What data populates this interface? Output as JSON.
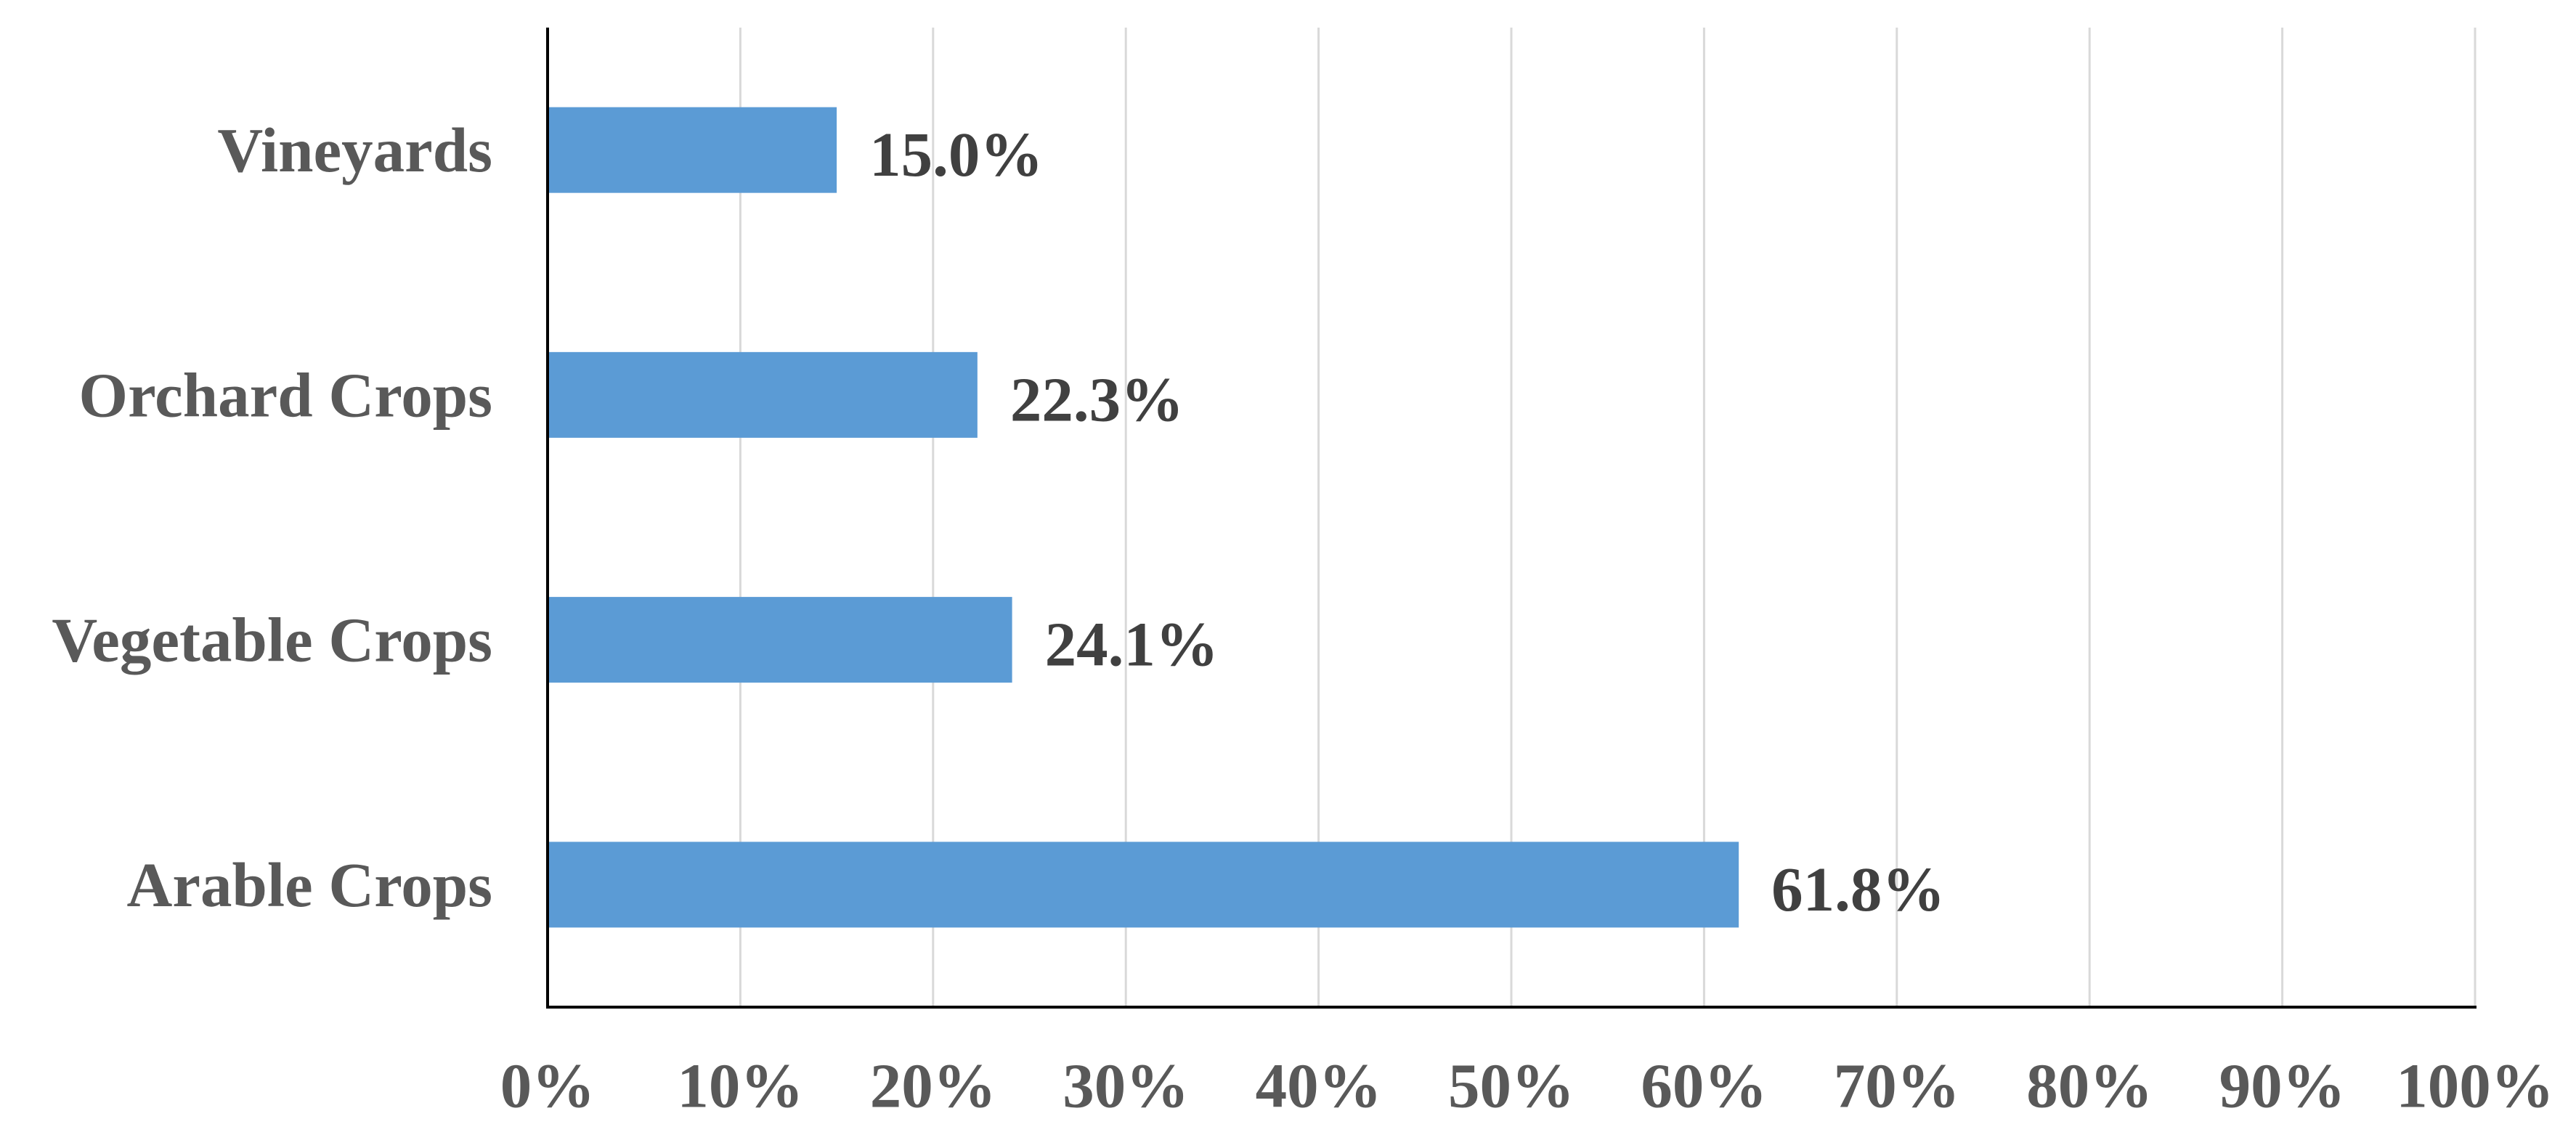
{
  "chart_data": {
    "type": "bar",
    "orientation": "horizontal",
    "categories": [
      "Arable Crops",
      "Vegetable Crops",
      "Orchard Crops",
      "Vineyards"
    ],
    "values": [
      61.8,
      24.1,
      22.3,
      15.0
    ],
    "data_labels": [
      "61.8%",
      "24.1%",
      "22.3%",
      "15.0%"
    ],
    "x_ticks": [
      0,
      10,
      20,
      30,
      40,
      50,
      60,
      70,
      80,
      90,
      100
    ],
    "x_tick_labels": [
      "0%",
      "10%",
      "20%",
      "30%",
      "40%",
      "50%",
      "60%",
      "70%",
      "80%",
      "90%",
      "100%"
    ],
    "xlim": [
      0,
      100
    ],
    "grid": "vertical",
    "legend": "none",
    "title": "",
    "xlabel": "",
    "ylabel": "",
    "colors": {
      "bar": "#5B9BD5",
      "gridline": "#D9D9D9",
      "axis": "#000000",
      "category_text": "#595959",
      "data_label_text": "#404040"
    }
  }
}
